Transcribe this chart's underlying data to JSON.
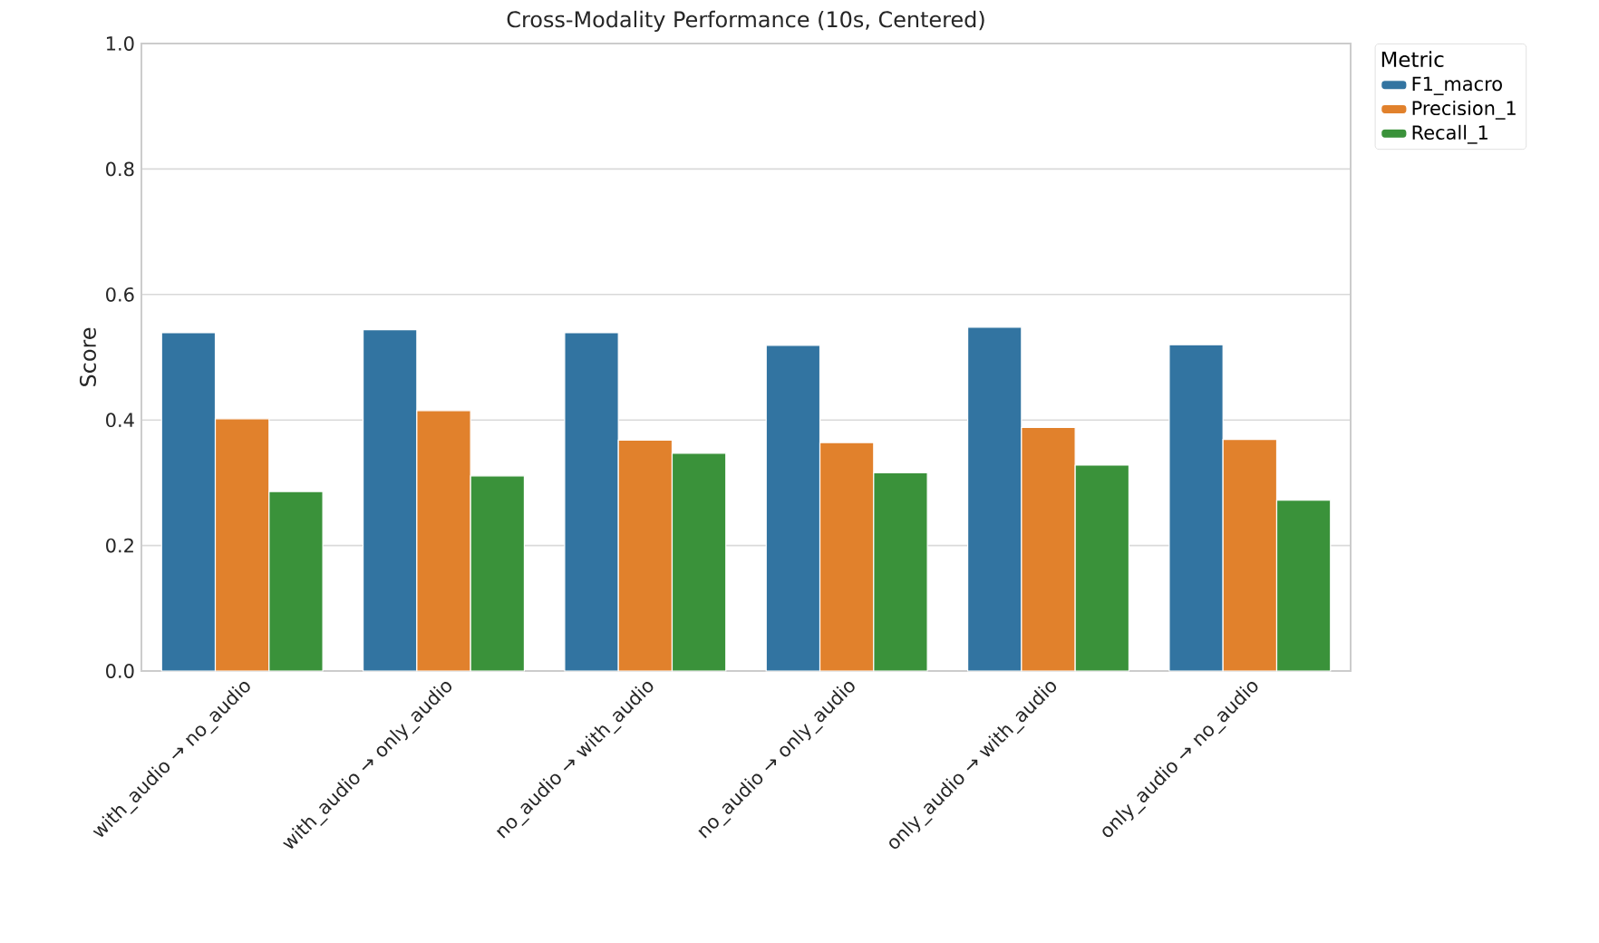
{
  "chart_data": {
    "type": "bar",
    "title": "Cross-Modality Performance (10s, Centered)",
    "ylabel": "Score",
    "legend_title": "Metric",
    "categories": [
      "with_audio → no_audio",
      "with_audio → only_audio",
      "no_audio → with_audio",
      "no_audio → only_audio",
      "only_audio → with_audio",
      "only_audio → no_audio"
    ],
    "series": [
      {
        "name": "F1_macro",
        "color": "#3274a1",
        "values": [
          0.539,
          0.544,
          0.539,
          0.519,
          0.548,
          0.52
        ]
      },
      {
        "name": "Precision_1",
        "color": "#e1812c",
        "values": [
          0.402,
          0.415,
          0.368,
          0.364,
          0.388,
          0.369
        ]
      },
      {
        "name": "Recall_1",
        "color": "#3a923a",
        "values": [
          0.286,
          0.311,
          0.347,
          0.316,
          0.328,
          0.272
        ]
      }
    ],
    "ylim": [
      0,
      1
    ],
    "yticks": [
      {
        "value": 0,
        "label": "0.0"
      },
      0.2,
      0.4,
      0.6,
      0.8,
      {
        "value": 1,
        "label": "1.0"
      }
    ],
    "grid": "y",
    "legend": "top right"
  }
}
